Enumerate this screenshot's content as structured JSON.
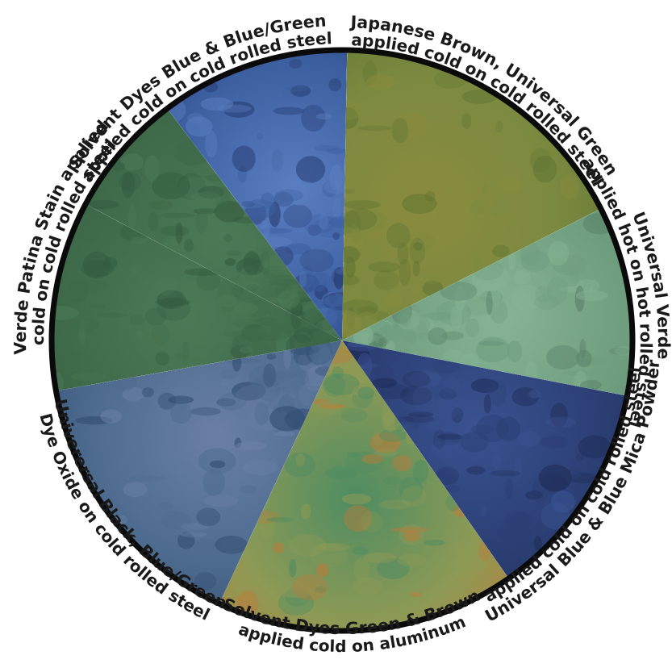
{
  "center_title": "",
  "segments": [
    {
      "line1": "Japanese Brown, Universal Green",
      "line2": "applied cold on cold rolled steel",
      "colors": [
        "#7c8a40",
        "#5e7432",
        "#8a8b3e"
      ],
      "texture": "mottled olive green-brown"
    },
    {
      "line1": "Universal Verde",
      "line2": "applied hot on hot rolled steel",
      "colors": [
        "#6f9e7f",
        "#567f66",
        "#86b494"
      ],
      "texture": "speckled pale verdigris"
    },
    {
      "line1": "Universal Blue & Blue Mica Powder",
      "line2": "applied cold on cold rolled steel",
      "colors": [
        "#2b3f74",
        "#1e2c56",
        "#3a5290"
      ],
      "texture": "dark navy cloudy"
    },
    {
      "line1": "Solvent Dyes Green & Brown",
      "line2": "applied cold on aluminum",
      "colors": [
        "#8e9a55",
        "#c07a38",
        "#4e8c62"
      ],
      "texture": "marbled green, amber and rust"
    },
    {
      "line1": "Univerersal Black, Blue/Green",
      "line2": "Dye Oxide on cold rolled steel",
      "colors": [
        "#4d6b8f",
        "#2f4a6f",
        "#6a7fa5"
      ],
      "texture": "crackled blue-violet"
    },
    {
      "line1": "Verde Patina Stain applied",
      "line2": "cold on cold rolled steel",
      "colors": [
        "#3f6a4a",
        "#335b3e",
        "#4c7a57"
      ],
      "texture": "flat deep green"
    },
    {
      "line1": "Solvent Dyes Blue & Blue/Green",
      "line2": "applied cold on cold rolled steel",
      "colors": [
        "#3c5fa0",
        "#25396e",
        "#5a7ec0"
      ],
      "texture": "mottled royal blue"
    }
  ]
}
